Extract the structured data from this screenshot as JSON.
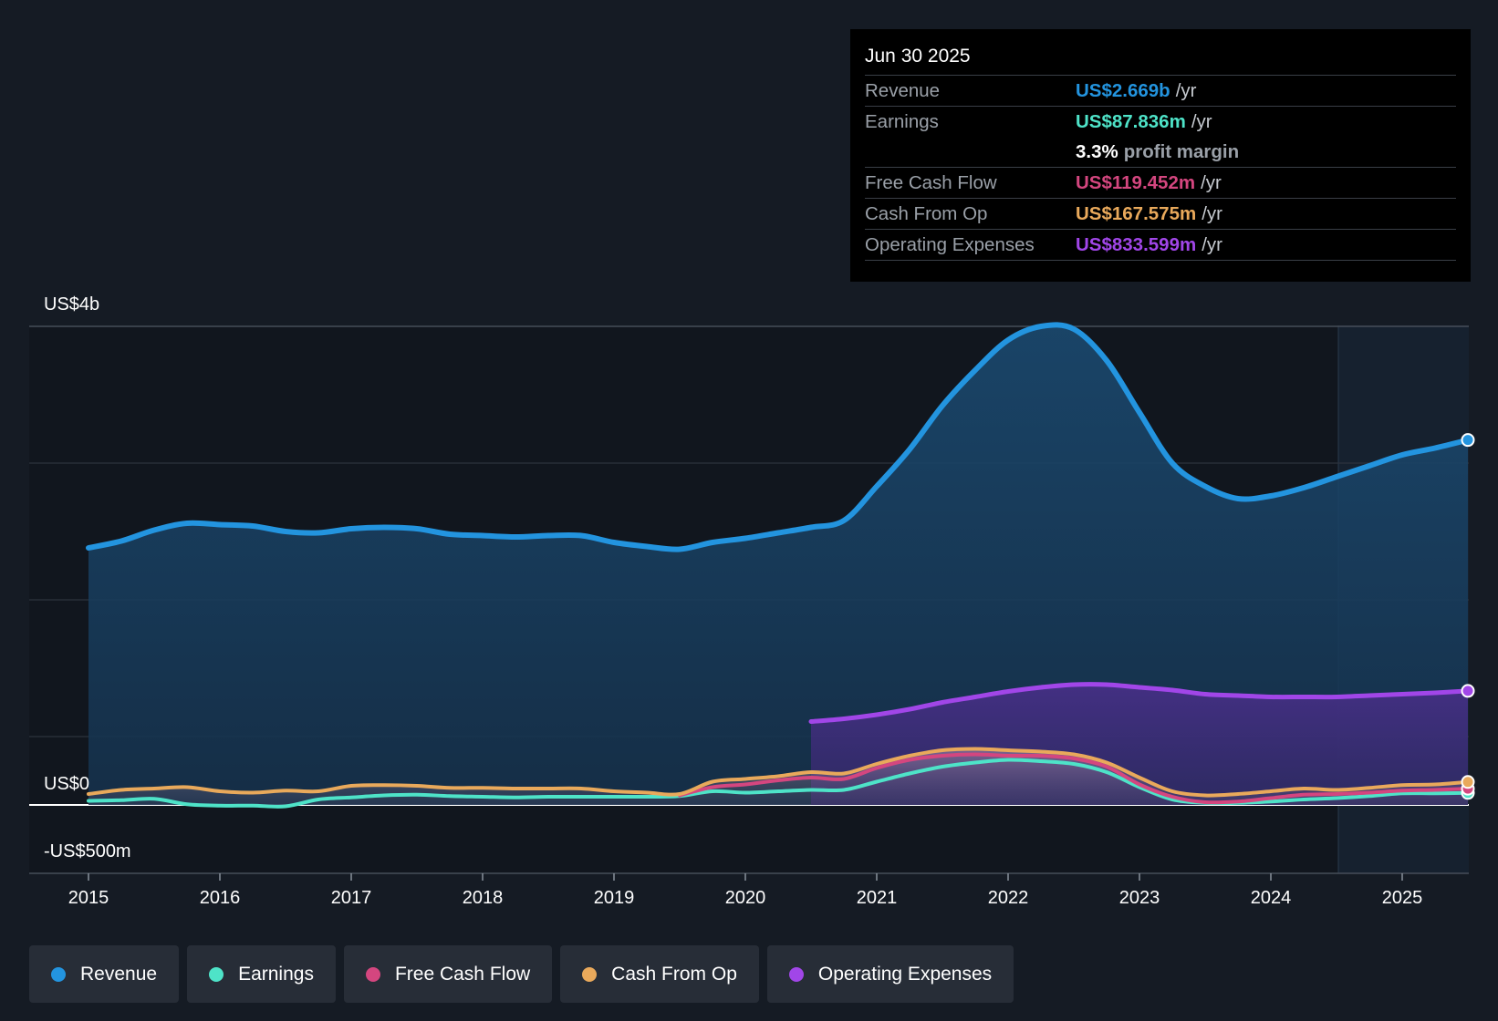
{
  "chart_data": {
    "type": "area",
    "title": "",
    "x_ticks": [
      "2015",
      "2016",
      "2017",
      "2018",
      "2019",
      "2020",
      "2021",
      "2022",
      "2023",
      "2024",
      "2025"
    ],
    "y_labels": {
      "top": "US$4b",
      "zero": "US$0",
      "bottom": "-US$500m"
    },
    "ylim": [
      -500,
      3500
    ],
    "unit": "US$m",
    "series": [
      {
        "name": "Revenue",
        "color": "#2394df",
        "x": [
          2015.0,
          2015.25,
          2015.5,
          2015.75,
          2016.0,
          2016.25,
          2016.5,
          2016.75,
          2017.0,
          2017.25,
          2017.5,
          2017.75,
          2018.0,
          2018.25,
          2018.5,
          2018.75,
          2019.0,
          2019.25,
          2019.5,
          2019.75,
          2020.0,
          2020.25,
          2020.5,
          2020.75,
          2021.0,
          2021.25,
          2021.5,
          2021.75,
          2022.0,
          2022.25,
          2022.5,
          2022.75,
          2023.0,
          2023.25,
          2023.5,
          2023.75,
          2024.0,
          2024.25,
          2024.5,
          2024.75,
          2025.0,
          2025.25,
          2025.5
        ],
        "values": [
          1880,
          1930,
          2010,
          2060,
          2050,
          2040,
          2000,
          1990,
          2020,
          2030,
          2020,
          1980,
          1970,
          1960,
          1970,
          1970,
          1920,
          1890,
          1870,
          1920,
          1950,
          1990,
          2030,
          2080,
          2330,
          2600,
          2920,
          3180,
          3400,
          3500,
          3480,
          3250,
          2870,
          2500,
          2330,
          2240,
          2260,
          2320,
          2400,
          2480,
          2560,
          2610,
          2669
        ]
      },
      {
        "name": "Earnings",
        "color": "#4ee3c8",
        "x": [
          2015.0,
          2015.25,
          2015.5,
          2015.75,
          2016.0,
          2016.25,
          2016.5,
          2016.75,
          2017.0,
          2017.25,
          2017.5,
          2017.75,
          2018.0,
          2018.25,
          2018.5,
          2018.75,
          2019.0,
          2019.25,
          2019.5,
          2019.75,
          2020.0,
          2020.25,
          2020.5,
          2020.75,
          2021.0,
          2021.25,
          2021.5,
          2021.75,
          2022.0,
          2022.25,
          2022.5,
          2022.75,
          2023.0,
          2023.25,
          2023.5,
          2023.75,
          2024.0,
          2024.25,
          2024.5,
          2024.75,
          2025.0,
          2025.25,
          2025.5
        ],
        "values": [
          30,
          35,
          45,
          5,
          -5,
          -5,
          -10,
          40,
          55,
          70,
          75,
          65,
          60,
          55,
          60,
          60,
          60,
          60,
          65,
          100,
          90,
          100,
          110,
          110,
          170,
          230,
          280,
          310,
          330,
          320,
          300,
          240,
          130,
          40,
          15,
          15,
          25,
          40,
          50,
          65,
          85,
          85,
          88
        ]
      },
      {
        "name": "Free Cash Flow",
        "color": "#d4467f",
        "x": [
          2019.5,
          2019.75,
          2020.0,
          2020.25,
          2020.5,
          2020.75,
          2021.0,
          2021.25,
          2021.5,
          2021.75,
          2022.0,
          2022.25,
          2022.5,
          2022.75,
          2023.0,
          2023.25,
          2023.5,
          2023.75,
          2024.0,
          2024.25,
          2024.5,
          2024.75,
          2025.0,
          2025.25,
          2025.5
        ],
        "values": [
          70,
          130,
          150,
          180,
          200,
          190,
          270,
          330,
          360,
          370,
          360,
          360,
          340,
          280,
          150,
          60,
          20,
          25,
          50,
          75,
          80,
          90,
          105,
          110,
          119
        ]
      },
      {
        "name": "Cash From Op",
        "color": "#e9a95b",
        "x": [
          2015.0,
          2015.25,
          2015.5,
          2015.75,
          2016.0,
          2016.25,
          2016.5,
          2016.75,
          2017.0,
          2017.25,
          2017.5,
          2017.75,
          2018.0,
          2018.25,
          2018.5,
          2018.75,
          2019.0,
          2019.25,
          2019.5,
          2019.75,
          2020.0,
          2020.25,
          2020.5,
          2020.75,
          2021.0,
          2021.25,
          2021.5,
          2021.75,
          2022.0,
          2022.25,
          2022.5,
          2022.75,
          2023.0,
          2023.25,
          2023.5,
          2023.75,
          2024.0,
          2024.25,
          2024.5,
          2024.75,
          2025.0,
          2025.25,
          2025.5
        ],
        "values": [
          80,
          110,
          120,
          130,
          100,
          90,
          105,
          100,
          140,
          145,
          140,
          125,
          125,
          120,
          120,
          120,
          100,
          90,
          80,
          170,
          190,
          210,
          240,
          230,
          300,
          360,
          400,
          410,
          400,
          390,
          370,
          310,
          200,
          100,
          70,
          80,
          100,
          120,
          110,
          125,
          145,
          150,
          168
        ]
      },
      {
        "name": "Operating Expenses",
        "color": "#a146e8",
        "x": [
          2020.5,
          2020.75,
          2021.0,
          2021.25,
          2021.5,
          2021.75,
          2022.0,
          2022.25,
          2022.5,
          2022.75,
          2023.0,
          2023.25,
          2023.5,
          2023.75,
          2024.0,
          2024.25,
          2024.5,
          2024.75,
          2025.0,
          2025.25,
          2025.5
        ],
        "values": [
          610,
          630,
          660,
          700,
          750,
          790,
          830,
          860,
          880,
          880,
          860,
          840,
          810,
          800,
          790,
          790,
          790,
          800,
          810,
          820,
          834
        ]
      }
    ],
    "tooltip": {
      "date": "Jun 30 2025",
      "rows": [
        {
          "name": "Revenue",
          "value": "US$2.669b",
          "unit": "/yr",
          "color": "#2394df"
        },
        {
          "name": "Earnings",
          "value": "US$87.836m",
          "unit": "/yr",
          "color": "#4ee3c8"
        },
        {
          "name": "",
          "value": "3.3%",
          "unit": "profit margin",
          "color": "#ffffff"
        },
        {
          "name": "Free Cash Flow",
          "value": "US$119.452m",
          "unit": "/yr",
          "color": "#d4467f"
        },
        {
          "name": "Cash From Op",
          "value": "US$167.575m",
          "unit": "/yr",
          "color": "#e9a95b"
        },
        {
          "name": "Operating Expenses",
          "value": "US$833.599m",
          "unit": "/yr",
          "color": "#a146e8"
        }
      ]
    },
    "legend": [
      {
        "label": "Revenue",
        "color": "#2394df"
      },
      {
        "label": "Earnings",
        "color": "#4ee3c8"
      },
      {
        "label": "Free Cash Flow",
        "color": "#d4467f"
      },
      {
        "label": "Cash From Op",
        "color": "#e9a95b"
      },
      {
        "label": "Operating Expenses",
        "color": "#a146e8"
      }
    ]
  }
}
